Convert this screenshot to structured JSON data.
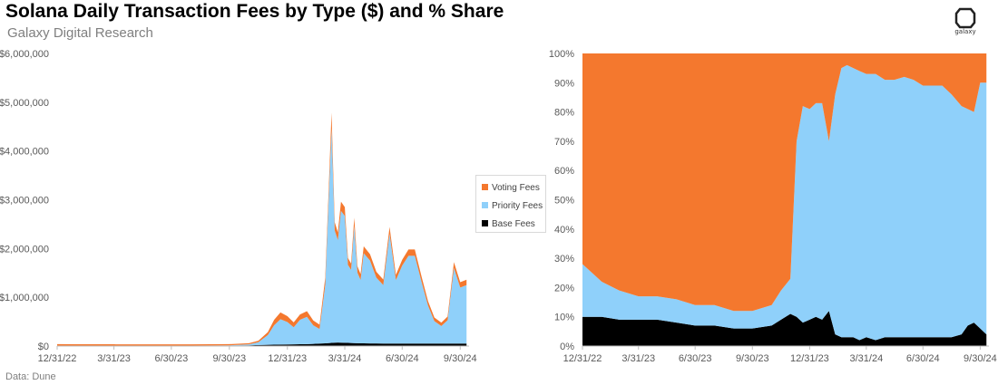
{
  "title": "Solana Daily Transaction Fees by Type ($) and % Share",
  "subtitle": "Galaxy Digital Research",
  "source": "Data: Dune",
  "logo_text": "galaxy",
  "legend": [
    {
      "label": "Voting Fees",
      "color": "#F4782E"
    },
    {
      "label": "Priority Fees",
      "color": "#8FD0FA"
    },
    {
      "label": "Base Fees",
      "color": "#000000"
    }
  ],
  "chart_data": [
    {
      "type": "area",
      "stacked": true,
      "x": [
        "12/31/22",
        "1/31/23",
        "2/28/23",
        "3/31/23",
        "4/30/23",
        "5/31/23",
        "6/30/23",
        "7/31/23",
        "8/31/23",
        "9/30/23",
        "10/31/23",
        "11/15/23",
        "11/30/23",
        "12/10/23",
        "12/20/23",
        "12/31/23",
        "1/10/24",
        "1/20/24",
        "1/31/24",
        "2/10/24",
        "2/20/24",
        "2/29/24",
        "3/5/24",
        "3/10/24",
        "3/15/24",
        "3/20/24",
        "3/25/24",
        "3/31/24",
        "4/5/24",
        "4/10/24",
        "4/15/24",
        "4/20/24",
        "4/25/24",
        "4/30/24",
        "5/10/24",
        "5/20/24",
        "5/31/24",
        "6/10/24",
        "6/20/24",
        "6/30/24",
        "7/10/24",
        "7/20/24",
        "7/31/24",
        "8/10/24",
        "8/20/24",
        "8/31/24",
        "9/10/24",
        "9/20/24",
        "9/30/24",
        "10/10/24"
      ],
      "series": [
        {
          "name": "Base Fees",
          "color": "#000000",
          "values": [
            8000,
            8000,
            8000,
            8000,
            8000,
            8000,
            8000,
            8000,
            9000,
            10000,
            15000,
            20000,
            25000,
            28000,
            30000,
            32000,
            35000,
            38000,
            40000,
            45000,
            50000,
            55000,
            60000,
            65000,
            70000,
            72000,
            70000,
            68000,
            65000,
            62000,
            60000,
            58000,
            56000,
            55000,
            54000,
            53000,
            52000,
            52000,
            51000,
            50000,
            50000,
            50000,
            50000,
            50000,
            50000,
            50000,
            50000,
            50000,
            50000,
            50000
          ]
        },
        {
          "name": "Priority Fees",
          "color": "#8FD0FA",
          "values": [
            2000,
            2000,
            2000,
            2000,
            2000,
            2000,
            2000,
            2000,
            3000,
            5000,
            20000,
            60000,
            200000,
            400000,
            520000,
            460000,
            350000,
            500000,
            560000,
            380000,
            300000,
            1200000,
            2800000,
            4400000,
            2300000,
            2100000,
            2700000,
            2600000,
            1600000,
            1500000,
            2400000,
            1450000,
            1300000,
            1850000,
            1700000,
            1350000,
            1200000,
            2250000,
            1300000,
            1600000,
            1800000,
            1800000,
            1250000,
            780000,
            460000,
            360000,
            480000,
            1550000,
            1150000,
            1200000
          ]
        },
        {
          "name": "Voting Fees",
          "color": "#F4782E",
          "values": [
            30000,
            28000,
            27000,
            26000,
            25000,
            25000,
            25000,
            24000,
            24000,
            24000,
            24000,
            30000,
            60000,
            110000,
            140000,
            120000,
            100000,
            110000,
            115000,
            100000,
            90000,
            150000,
            190000,
            320000,
            170000,
            160000,
            190000,
            180000,
            140000,
            130000,
            170000,
            130000,
            120000,
            140000,
            130000,
            120000,
            110000,
            140000,
            110000,
            120000,
            130000,
            130000,
            110000,
            90000,
            75000,
            70000,
            75000,
            120000,
            110000,
            110000
          ]
        }
      ],
      "ylim": [
        0,
        6000000
      ],
      "yticks": [
        "$0",
        "$1,000,000",
        "$2,000,000",
        "$3,000,000",
        "$4,000,000",
        "$5,000,000",
        "$6,000,000"
      ],
      "xticks": [
        "12/31/22",
        "3/31/23",
        "6/30/23",
        "9/30/23",
        "12/31/23",
        "3/31/24",
        "6/30/24",
        "9/30/24"
      ],
      "legend_position": "right"
    },
    {
      "type": "area",
      "stacked": true,
      "percent": true,
      "x": [
        "12/31/22",
        "1/31/23",
        "2/28/23",
        "3/31/23",
        "4/30/23",
        "5/31/23",
        "6/30/23",
        "7/31/23",
        "8/31/23",
        "9/30/23",
        "10/31/23",
        "11/15/23",
        "11/30/23",
        "12/10/23",
        "12/20/23",
        "12/31/23",
        "1/10/24",
        "1/20/24",
        "1/31/24",
        "2/10/24",
        "2/20/24",
        "2/29/24",
        "3/10/24",
        "3/20/24",
        "3/31/24",
        "4/15/24",
        "4/30/24",
        "5/15/24",
        "5/31/24",
        "6/15/24",
        "6/30/24",
        "7/15/24",
        "7/31/24",
        "8/15/24",
        "8/31/24",
        "9/10/24",
        "9/20/24",
        "9/30/24",
        "10/10/24"
      ],
      "series": [
        {
          "name": "Base Fees",
          "color": "#000000",
          "values": [
            10,
            10,
            9,
            9,
            9,
            8,
            7,
            7,
            6,
            6,
            7,
            9,
            11,
            10,
            8,
            9,
            10,
            9,
            12,
            4,
            3,
            3,
            3,
            2,
            3,
            2,
            3,
            3,
            3,
            3,
            3,
            3,
            3,
            3,
            4,
            7,
            8,
            6,
            4
          ]
        },
        {
          "name": "Priority Fees",
          "color": "#8FD0FA",
          "values": [
            18,
            12,
            10,
            8,
            8,
            8,
            7,
            7,
            6,
            6,
            7,
            10,
            12,
            60,
            74,
            72,
            73,
            74,
            58,
            82,
            92,
            93,
            92,
            92,
            90,
            91,
            88,
            88,
            89,
            88,
            86,
            86,
            86,
            83,
            78,
            74,
            72,
            84,
            86
          ]
        },
        {
          "name": "Voting Fees",
          "color": "#F4782E",
          "values": [
            72,
            78,
            81,
            83,
            83,
            84,
            86,
            86,
            88,
            88,
            86,
            81,
            77,
            30,
            18,
            19,
            17,
            17,
            30,
            14,
            5,
            4,
            5,
            6,
            7,
            7,
            9,
            9,
            8,
            9,
            11,
            11,
            11,
            14,
            18,
            19,
            20,
            10,
            10
          ]
        }
      ],
      "ylim": [
        0,
        100
      ],
      "yticks": [
        "0%",
        "10%",
        "20%",
        "30%",
        "40%",
        "50%",
        "60%",
        "70%",
        "80%",
        "90%",
        "100%"
      ],
      "xticks": [
        "12/31/22",
        "3/31/23",
        "6/30/23",
        "9/30/23",
        "12/31/23",
        "3/31/24",
        "6/30/24",
        "9/30/24"
      ]
    }
  ]
}
